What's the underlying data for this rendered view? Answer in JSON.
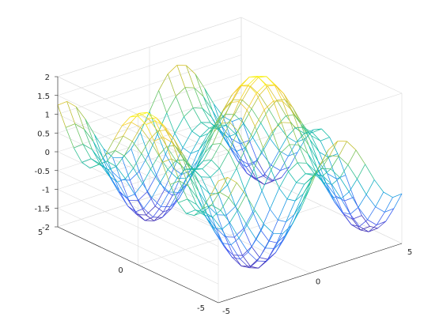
{
  "chart_data": {
    "type": "surface",
    "style": "wireframe mesh",
    "title": "",
    "xlabel": "",
    "ylabel": "",
    "zlabel": "",
    "function": "z = sin(x) + cos(y)",
    "x_range": [
      -5,
      5
    ],
    "y_range": [
      -5,
      5
    ],
    "z_range": [
      -2,
      2
    ],
    "x_ticks": [
      "-5",
      "0",
      "5"
    ],
    "y_ticks": [
      "-5",
      "0",
      "5"
    ],
    "z_ticks": [
      "-2",
      "-1.5",
      "-1",
      "-0.5",
      "0",
      "0.5",
      "1",
      "1.5",
      "2"
    ],
    "x_samples": [
      -5,
      -4.5,
      -4,
      -3.5,
      -3,
      -2.5,
      -2,
      -1.5,
      -1,
      -0.5,
      0,
      0.5,
      1,
      1.5,
      2,
      2.5,
      3,
      3.5,
      4,
      4.5,
      5
    ],
    "y_samples": [
      -5,
      -4.5,
      -4,
      -3.5,
      -3,
      -2.5,
      -2,
      -1.5,
      -1,
      -0.5,
      0,
      0.5,
      1,
      1.5,
      2,
      2.5,
      3,
      3.5,
      4,
      4.5,
      5
    ],
    "colormap": "parula",
    "colormap_stops": [
      "#3e26a8",
      "#4256f0",
      "#2c88f3",
      "#12a8d6",
      "#1abea6",
      "#63c569",
      "#bdbf35",
      "#f5c92b",
      "#f9fb0e"
    ],
    "grid": true,
    "box": true,
    "legend": "none"
  }
}
